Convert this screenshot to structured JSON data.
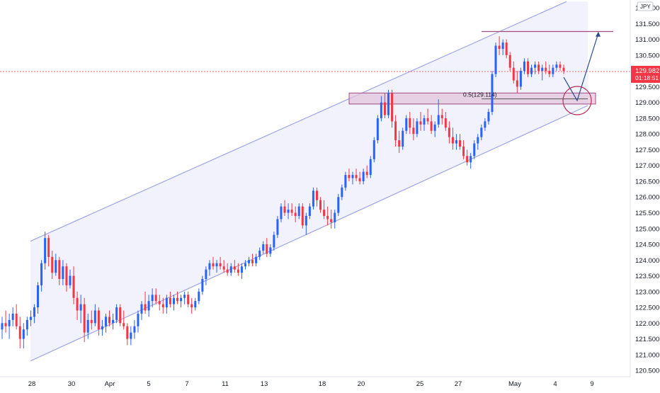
{
  "colors": {
    "up": "#2962ff",
    "down": "#f23645",
    "channel_line": "#9ea5e6",
    "channel_fill": "#eef0fb",
    "zone_fill": "#e2c6dc",
    "zone_border": "#a34b80",
    "resistance_line": "#a34b80",
    "price_tag": "#f23645",
    "axis_text": "#131722",
    "arrow": "#2a4c8c",
    "circle": "#b52f55"
  },
  "icons": {
    "projection": "arrow-path-icon",
    "target_marker": "circle-marker-icon"
  },
  "chart_data": {
    "type": "candlestick",
    "currency": "JPY",
    "ylim": [
      120.3,
      132.25
    ],
    "y_ticks": [
      "132.000",
      "131.500",
      "131.000",
      "130.500",
      "130.000",
      "129.500",
      "129.000",
      "128.500",
      "128.000",
      "127.500",
      "127.000",
      "126.500",
      "126.000",
      "125.500",
      "125.000",
      "124.500",
      "124.000",
      "123.500",
      "123.000",
      "122.500",
      "122.000",
      "121.500",
      "121.000",
      "120.500"
    ],
    "x_ticks": [
      "28",
      "30",
      "Apr",
      "5",
      "7",
      "11",
      "13",
      "18",
      "20",
      "25",
      "27",
      "May",
      "4",
      "9"
    ],
    "last_price": {
      "value": "129.982",
      "countdown": "01:18:51"
    },
    "candles": [
      [
        121.8,
        122.2,
        121.5,
        122.0
      ],
      [
        122.0,
        122.4,
        121.7,
        121.9
      ],
      [
        121.9,
        122.3,
        121.5,
        122.1
      ],
      [
        122.1,
        122.5,
        121.9,
        122.3
      ],
      [
        122.3,
        122.6,
        121.8,
        121.9
      ],
      [
        121.9,
        122.2,
        121.2,
        121.5
      ],
      [
        121.5,
        122.0,
        121.2,
        121.8
      ],
      [
        121.8,
        122.2,
        121.6,
        122.1
      ],
      [
        122.1,
        122.4,
        121.9,
        122.2
      ],
      [
        122.2,
        122.6,
        122.0,
        122.5
      ],
      [
        122.5,
        123.3,
        122.3,
        123.2
      ],
      [
        123.2,
        124.0,
        123.0,
        123.9
      ],
      [
        123.9,
        124.9,
        123.7,
        124.7
      ],
      [
        124.7,
        124.8,
        123.8,
        124.1
      ],
      [
        124.1,
        124.3,
        123.4,
        123.6
      ],
      [
        123.6,
        124.2,
        123.5,
        124.0
      ],
      [
        124.0,
        124.1,
        123.2,
        123.4
      ],
      [
        123.4,
        124.0,
        123.2,
        123.8
      ],
      [
        123.8,
        123.9,
        123.0,
        123.2
      ],
      [
        123.2,
        123.7,
        123.1,
        123.5
      ],
      [
        123.5,
        123.8,
        122.6,
        122.8
      ],
      [
        122.8,
        123.0,
        122.1,
        122.4
      ],
      [
        122.4,
        122.9,
        122.0,
        122.6
      ],
      [
        122.6,
        122.8,
        121.4,
        121.7
      ],
      [
        121.7,
        122.3,
        121.5,
        122.1
      ],
      [
        122.1,
        122.4,
        121.8,
        122.0
      ],
      [
        122.0,
        122.6,
        121.9,
        122.4
      ],
      [
        122.4,
        122.5,
        121.6,
        121.8
      ],
      [
        121.8,
        122.1,
        121.6,
        121.9
      ],
      [
        121.9,
        122.3,
        121.7,
        122.2
      ],
      [
        122.2,
        122.4,
        121.9,
        122.0
      ],
      [
        122.0,
        122.3,
        121.8,
        122.1
      ],
      [
        122.1,
        122.6,
        122.0,
        122.5
      ],
      [
        122.5,
        122.6,
        121.9,
        122.0
      ],
      [
        122.0,
        122.4,
        121.8,
        121.9
      ],
      [
        121.9,
        122.0,
        121.3,
        121.5
      ],
      [
        121.5,
        121.9,
        121.3,
        121.7
      ],
      [
        121.7,
        122.1,
        121.5,
        121.9
      ],
      [
        121.9,
        122.4,
        121.7,
        122.3
      ],
      [
        122.3,
        122.7,
        122.1,
        122.6
      ],
      [
        122.6,
        123.0,
        122.3,
        122.4
      ],
      [
        122.4,
        122.9,
        122.2,
        122.7
      ],
      [
        122.7,
        123.1,
        122.5,
        122.9
      ],
      [
        122.9,
        123.1,
        122.6,
        122.7
      ],
      [
        122.7,
        122.9,
        122.4,
        122.6
      ],
      [
        122.6,
        122.8,
        122.3,
        122.5
      ],
      [
        122.5,
        122.9,
        122.3,
        122.8
      ],
      [
        122.8,
        123.0,
        122.5,
        122.6
      ],
      [
        122.6,
        122.9,
        122.4,
        122.8
      ],
      [
        122.8,
        123.0,
        122.6,
        122.7
      ],
      [
        122.7,
        122.9,
        122.5,
        122.8
      ],
      [
        122.8,
        123.0,
        122.6,
        122.9
      ],
      [
        122.9,
        123.0,
        122.5,
        122.6
      ],
      [
        122.6,
        122.8,
        122.3,
        122.5
      ],
      [
        122.5,
        122.8,
        122.4,
        122.7
      ],
      [
        122.7,
        123.1,
        122.6,
        123.0
      ],
      [
        123.0,
        123.5,
        122.9,
        123.4
      ],
      [
        123.4,
        123.8,
        123.2,
        123.7
      ],
      [
        123.7,
        124.0,
        123.5,
        123.9
      ],
      [
        123.9,
        124.1,
        123.7,
        123.8
      ],
      [
        123.8,
        124.0,
        123.6,
        123.9
      ],
      [
        123.9,
        124.1,
        123.7,
        123.8
      ],
      [
        123.8,
        124.0,
        123.6,
        123.7
      ],
      [
        123.7,
        123.9,
        123.5,
        123.6
      ],
      [
        123.6,
        123.9,
        123.5,
        123.8
      ],
      [
        123.8,
        124.0,
        123.6,
        123.7
      ],
      [
        123.7,
        123.9,
        123.5,
        123.6
      ],
      [
        123.6,
        123.9,
        123.4,
        123.8
      ],
      [
        123.8,
        124.0,
        123.7,
        123.9
      ],
      [
        123.9,
        124.1,
        123.8,
        124.0
      ],
      [
        124.0,
        124.2,
        123.8,
        123.9
      ],
      [
        123.9,
        124.2,
        123.8,
        124.1
      ],
      [
        124.1,
        124.4,
        124.0,
        124.3
      ],
      [
        124.3,
        124.6,
        124.2,
        124.5
      ],
      [
        124.5,
        124.7,
        124.1,
        124.2
      ],
      [
        124.2,
        124.5,
        124.1,
        124.4
      ],
      [
        124.4,
        124.9,
        124.3,
        124.8
      ],
      [
        124.8,
        125.4,
        124.7,
        125.3
      ],
      [
        125.3,
        125.8,
        125.2,
        125.7
      ],
      [
        125.7,
        125.9,
        125.4,
        125.5
      ],
      [
        125.5,
        125.8,
        125.3,
        125.6
      ],
      [
        125.6,
        125.8,
        125.4,
        125.5
      ],
      [
        125.5,
        125.7,
        125.2,
        125.4
      ],
      [
        125.4,
        125.8,
        125.3,
        125.7
      ],
      [
        125.7,
        125.8,
        125.0,
        125.1
      ],
      [
        125.1,
        125.5,
        124.8,
        125.4
      ],
      [
        125.4,
        125.8,
        125.3,
        125.7
      ],
      [
        125.7,
        126.3,
        125.6,
        126.2
      ],
      [
        126.2,
        126.3,
        125.7,
        125.9
      ],
      [
        125.9,
        126.0,
        125.5,
        125.6
      ],
      [
        125.6,
        125.9,
        125.3,
        125.4
      ],
      [
        125.4,
        125.7,
        125.1,
        125.3
      ],
      [
        125.3,
        125.6,
        125.0,
        125.2
      ],
      [
        125.2,
        125.6,
        125.0,
        125.5
      ],
      [
        125.5,
        126.1,
        125.4,
        126.0
      ],
      [
        126.0,
        126.4,
        125.9,
        126.3
      ],
      [
        126.3,
        126.8,
        126.2,
        126.7
      ],
      [
        126.7,
        126.9,
        126.5,
        126.6
      ],
      [
        126.6,
        126.8,
        126.4,
        126.7
      ],
      [
        126.7,
        126.9,
        126.5,
        126.6
      ],
      [
        126.6,
        126.8,
        126.4,
        126.5
      ],
      [
        126.5,
        126.9,
        126.4,
        126.8
      ],
      [
        126.8,
        127.0,
        126.6,
        126.7
      ],
      [
        126.7,
        127.3,
        126.6,
        127.2
      ],
      [
        127.2,
        127.9,
        127.1,
        127.8
      ],
      [
        127.8,
        128.6,
        127.7,
        128.5
      ],
      [
        128.5,
        129.2,
        128.4,
        129.0
      ],
      [
        129.0,
        129.3,
        128.5,
        128.6
      ],
      [
        128.6,
        129.4,
        128.5,
        129.3
      ],
      [
        129.3,
        129.4,
        128.2,
        128.4
      ],
      [
        128.4,
        128.6,
        127.6,
        127.8
      ],
      [
        127.8,
        128.1,
        127.4,
        127.6
      ],
      [
        127.6,
        128.2,
        127.5,
        128.1
      ],
      [
        128.1,
        128.6,
        128.0,
        128.5
      ],
      [
        128.5,
        128.7,
        128.0,
        128.2
      ],
      [
        128.2,
        128.5,
        127.8,
        128.0
      ],
      [
        128.0,
        128.5,
        127.9,
        128.4
      ],
      [
        128.4,
        128.7,
        128.1,
        128.3
      ],
      [
        128.3,
        128.6,
        128.1,
        128.5
      ],
      [
        128.5,
        128.8,
        128.3,
        128.4
      ],
      [
        128.4,
        128.6,
        128.0,
        128.1
      ],
      [
        128.1,
        128.4,
        127.9,
        128.3
      ],
      [
        128.3,
        129.1,
        128.2,
        128.6
      ],
      [
        128.6,
        128.8,
        128.3,
        128.5
      ],
      [
        128.5,
        128.7,
        128.1,
        128.2
      ],
      [
        128.2,
        128.4,
        127.7,
        127.9
      ],
      [
        127.9,
        128.2,
        127.5,
        127.7
      ],
      [
        127.7,
        128.0,
        127.5,
        127.8
      ],
      [
        127.8,
        128.0,
        127.5,
        127.6
      ],
      [
        127.6,
        127.8,
        127.2,
        127.3
      ],
      [
        127.3,
        127.5,
        127.0,
        127.1
      ],
      [
        127.1,
        127.4,
        126.9,
        127.3
      ],
      [
        127.3,
        127.8,
        127.2,
        127.7
      ],
      [
        127.7,
        128.0,
        127.5,
        127.9
      ],
      [
        127.9,
        128.3,
        127.8,
        128.2
      ],
      [
        128.2,
        128.5,
        128.1,
        128.4
      ],
      [
        128.4,
        128.8,
        128.3,
        128.7
      ],
      [
        128.7,
        130.0,
        128.6,
        129.9
      ],
      [
        129.9,
        130.9,
        129.8,
        130.8
      ],
      [
        130.8,
        131.1,
        130.5,
        130.7
      ],
      [
        130.7,
        131.0,
        130.5,
        130.9
      ],
      [
        130.9,
        131.0,
        130.4,
        130.5
      ],
      [
        130.5,
        130.6,
        130.0,
        130.1
      ],
      [
        130.1,
        130.3,
        129.6,
        129.7
      ],
      [
        129.7,
        130.0,
        129.3,
        129.5
      ],
      [
        129.5,
        130.1,
        129.4,
        130.0
      ],
      [
        130.0,
        130.4,
        129.9,
        130.3
      ],
      [
        130.3,
        130.4,
        129.8,
        129.9
      ],
      [
        129.9,
        130.2,
        129.8,
        130.1
      ],
      [
        130.1,
        130.3,
        129.9,
        130.2
      ],
      [
        130.2,
        130.3,
        129.9,
        130.0
      ],
      [
        130.0,
        130.2,
        129.7,
        130.1
      ],
      [
        130.1,
        130.3,
        129.9,
        130.0
      ],
      [
        130.0,
        130.2,
        129.8,
        129.9
      ],
      [
        129.9,
        130.2,
        129.8,
        130.1
      ],
      [
        130.1,
        130.3,
        130.0,
        130.2
      ],
      [
        130.2,
        130.3,
        130.0,
        130.1
      ],
      [
        130.1,
        130.2,
        129.9,
        130.0
      ]
    ],
    "channel": {
      "upper": [
        [
          43,
          124.6
        ],
        [
          800,
          132.2
        ]
      ],
      "lower": [
        [
          43,
          120.8
        ],
        [
          830,
          128.9
        ]
      ]
    },
    "resistance_level": 131.25,
    "support_zone": {
      "low": 128.95,
      "high": 129.3,
      "fib_label": "0.5(129.114)",
      "fib_value": 129.114
    },
    "projection": [
      [
        796,
        129.8
      ],
      [
        815,
        129.06
      ],
      [
        845,
        131.2
      ]
    ]
  }
}
